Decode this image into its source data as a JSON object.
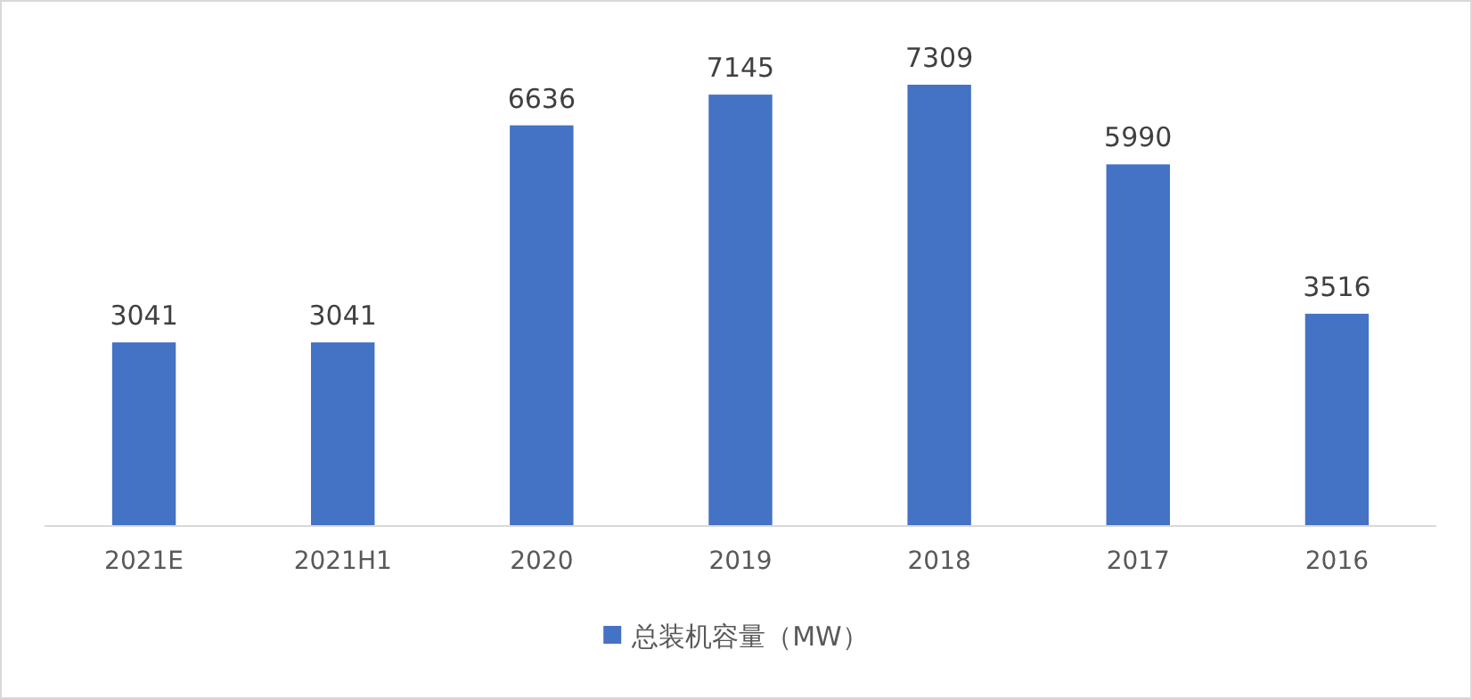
{
  "chart_data": {
    "type": "bar",
    "categories": [
      "2021E",
      "2021H1",
      "2020",
      "2019",
      "2018",
      "2017",
      "2016"
    ],
    "series": [
      {
        "name": "总装机容量（MW）",
        "color": "#4472c4",
        "values": [
          3041,
          3041,
          6636,
          7145,
          7309,
          5990,
          3516
        ]
      }
    ],
    "data_labels": true,
    "grid": false,
    "legend": "bottom",
    "tick_labels": "x"
  }
}
